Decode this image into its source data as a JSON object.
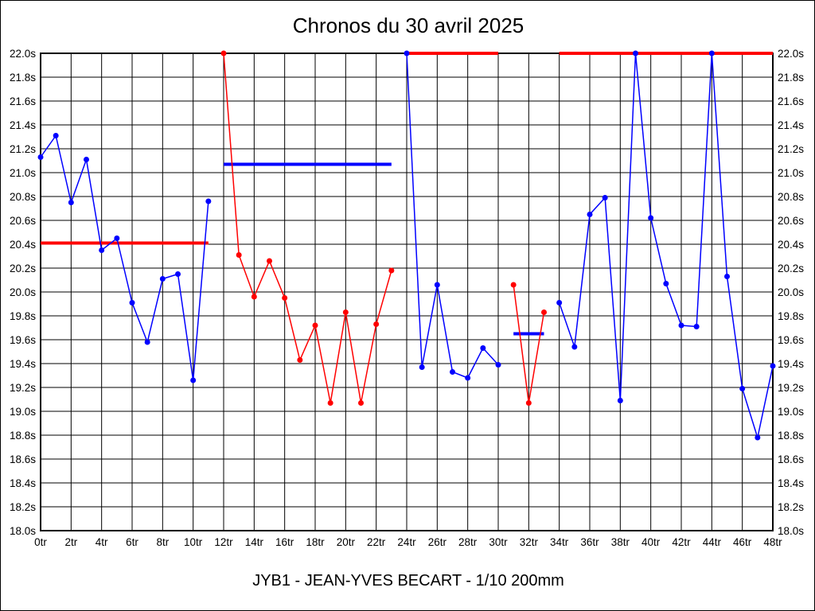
{
  "chart_data": {
    "type": "line",
    "title": "Chronos du 30 avril 2025",
    "subtitle": "JYB1 - JEAN-YVES BECART - 1/10 200mm",
    "xlabel": "",
    "ylabel": "",
    "xlim": [
      0,
      48
    ],
    "ylim": [
      18.0,
      22.0
    ],
    "grid": "on",
    "legend": "none",
    "colors": {
      "blue_series": "#0000ff",
      "red_series": "#ff0000",
      "grid": "#000000",
      "background": "#ffffff"
    },
    "x_ticks": [
      {
        "value": 0,
        "label": "0tr"
      },
      {
        "value": 2,
        "label": "2tr"
      },
      {
        "value": 4,
        "label": "4tr"
      },
      {
        "value": 6,
        "label": "6tr"
      },
      {
        "value": 8,
        "label": "8tr"
      },
      {
        "value": 10,
        "label": "10tr"
      },
      {
        "value": 12,
        "label": "12tr"
      },
      {
        "value": 14,
        "label": "14tr"
      },
      {
        "value": 16,
        "label": "16tr"
      },
      {
        "value": 18,
        "label": "18tr"
      },
      {
        "value": 20,
        "label": "20tr"
      },
      {
        "value": 22,
        "label": "22tr"
      },
      {
        "value": 24,
        "label": "24tr"
      },
      {
        "value": 26,
        "label": "26tr"
      },
      {
        "value": 28,
        "label": "28tr"
      },
      {
        "value": 30,
        "label": "30tr"
      },
      {
        "value": 32,
        "label": "32tr"
      },
      {
        "value": 34,
        "label": "34tr"
      },
      {
        "value": 36,
        "label": "36tr"
      },
      {
        "value": 38,
        "label": "38tr"
      },
      {
        "value": 40,
        "label": "40tr"
      },
      {
        "value": 42,
        "label": "42tr"
      },
      {
        "value": 44,
        "label": "44tr"
      },
      {
        "value": 46,
        "label": "46tr"
      },
      {
        "value": 48,
        "label": "48tr"
      }
    ],
    "y_ticks": [
      {
        "value": 22.0,
        "label": "22.0s"
      },
      {
        "value": 21.8,
        "label": "21.8s"
      },
      {
        "value": 21.6,
        "label": "21.6s"
      },
      {
        "value": 21.4,
        "label": "21.4s"
      },
      {
        "value": 21.2,
        "label": "21.2s"
      },
      {
        "value": 21.0,
        "label": "21.0s"
      },
      {
        "value": 20.8,
        "label": "20.8s"
      },
      {
        "value": 20.6,
        "label": "20.6s"
      },
      {
        "value": 20.4,
        "label": "20.4s"
      },
      {
        "value": 20.2,
        "label": "20.2s"
      },
      {
        "value": 20.0,
        "label": "20.0s"
      },
      {
        "value": 19.8,
        "label": "19.8s"
      },
      {
        "value": 19.6,
        "label": "19.6s"
      },
      {
        "value": 19.4,
        "label": "19.4s"
      },
      {
        "value": 19.2,
        "label": "19.2s"
      },
      {
        "value": 19.0,
        "label": "19.0s"
      },
      {
        "value": 18.8,
        "label": "18.8s"
      },
      {
        "value": 18.6,
        "label": "18.6s"
      },
      {
        "value": 18.4,
        "label": "18.4s"
      },
      {
        "value": 18.2,
        "label": "18.2s"
      },
      {
        "value": 18.0,
        "label": "18.0s"
      }
    ],
    "series": [
      {
        "name": "serie-1-bleue",
        "color": "#0000ff",
        "x_start": 0,
        "values": [
          21.13,
          21.31,
          20.75,
          21.11,
          20.35,
          20.45,
          19.91,
          19.58,
          20.11,
          20.15,
          19.26,
          20.76
        ]
      },
      {
        "name": "serie-2-rouge",
        "color": "#ff0000",
        "x_start": 12,
        "values": [
          22.0,
          20.31,
          19.96,
          20.26,
          19.95,
          19.43,
          19.72,
          19.07,
          19.83,
          19.07,
          19.73,
          20.18
        ]
      },
      {
        "name": "serie-3-bleue",
        "color": "#0000ff",
        "x_start": 24,
        "values": [
          22.0,
          19.37,
          20.06,
          19.33,
          19.28,
          19.53,
          19.39
        ]
      },
      {
        "name": "serie-4-rouge",
        "color": "#ff0000",
        "x_start": 31,
        "values": [
          20.06,
          19.07,
          19.83
        ]
      },
      {
        "name": "serie-5-bleue",
        "color": "#0000ff",
        "x_start": 34,
        "values": [
          19.91,
          19.54,
          20.65,
          20.79,
          19.09,
          22.0,
          20.62,
          20.07,
          19.72,
          19.71,
          22.0,
          20.13,
          19.19,
          18.78,
          19.38
        ]
      }
    ],
    "reference_lines": [
      {
        "name": "moyenne-1",
        "color": "#ff0000",
        "value": 20.41,
        "x_start": 0,
        "x_end": 11
      },
      {
        "name": "moyenne-2",
        "color": "#0000ff",
        "value": 21.07,
        "x_start": 12,
        "x_end": 23
      },
      {
        "name": "moyenne-3",
        "color": "#ff0000",
        "value": 22.0,
        "x_start": 24,
        "x_end": 30
      },
      {
        "name": "moyenne-4",
        "color": "#0000ff",
        "value": 19.65,
        "x_start": 31,
        "x_end": 33
      },
      {
        "name": "moyenne-5",
        "color": "#ff0000",
        "value": 22.0,
        "x_start": 34,
        "x_end": 48
      }
    ]
  }
}
